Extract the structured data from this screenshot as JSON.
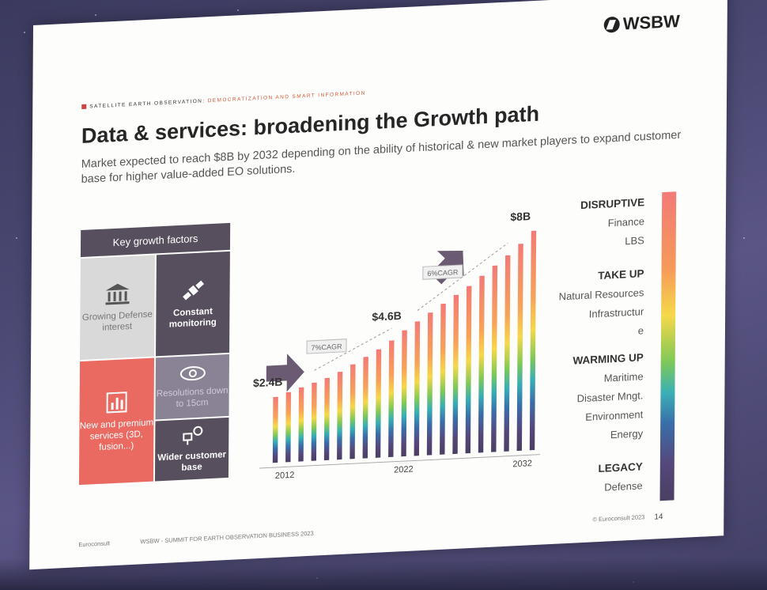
{
  "logo": "WSBW",
  "breadcrumb": {
    "part1": "SATELLITE EARTH OBSERVATION:",
    "part2": "DEMOCRATIZATION AND SMART INFORMATION"
  },
  "title": "Data & services: broadening the Growth path",
  "subtitle": "Market expected to reach $8B by 2032 depending on the ability of historical & new market players to expand customer base for higher value-added EO solutions.",
  "key_growth": {
    "header": "Key growth factors",
    "tiles": [
      {
        "label": "Growing Defense interest",
        "icon": "bank-icon"
      },
      {
        "label": "Constant monitoring",
        "icon": "satellite-icon"
      },
      {
        "label": "New and premium services (3D, fusion...)",
        "icon": "bar-chart-icon"
      },
      {
        "label": "Resolutions down to 15cm",
        "icon": "eye-icon"
      },
      {
        "label": "Wider customer base",
        "icon": "network-icon"
      }
    ]
  },
  "chart_data": {
    "type": "bar",
    "x_tick_labels": [
      "2012",
      "2022",
      "2032"
    ],
    "categories": [
      "2012",
      "2013",
      "2014",
      "2015",
      "2016",
      "2017",
      "2018",
      "2019",
      "2020",
      "2021",
      "2022",
      "2023",
      "2024",
      "2025",
      "2026",
      "2027",
      "2028",
      "2029",
      "2030",
      "2031",
      "2032"
    ],
    "values": [
      2.4,
      2.55,
      2.7,
      2.85,
      3.0,
      3.2,
      3.45,
      3.7,
      3.95,
      4.25,
      4.6,
      4.9,
      5.2,
      5.5,
      5.8,
      6.1,
      6.45,
      6.8,
      7.15,
      7.55,
      8.0
    ],
    "ylim": [
      0,
      8.6
    ],
    "annotations": [
      {
        "label": "$2.4B",
        "year": "2012"
      },
      {
        "label": "7%CAGR",
        "year": "2016"
      },
      {
        "label": "$4.6B",
        "year": "2022"
      },
      {
        "label": "6%CAGR",
        "year": "2025"
      },
      {
        "label": "$8B",
        "year": "2032"
      }
    ]
  },
  "segments": [
    {
      "header": "DISRUPTIVE",
      "items": [
        "Finance",
        "LBS"
      ]
    },
    {
      "header": "TAKE UP",
      "items": [
        "Natural Resources",
        "Infrastructur",
        "e"
      ]
    },
    {
      "header": "WARMING UP",
      "items": [
        "Maritime",
        "Disaster Mngt.",
        "Environment",
        "Energy"
      ]
    },
    {
      "header": "LEGACY",
      "items": [
        "Defense"
      ]
    }
  ],
  "footer": {
    "left": "Euroconsult",
    "center": "WSBW - SUMMIT FOR EARTH OBSERVATION BUSINESS 2023",
    "right": "© Euroconsult 2023",
    "page": "14"
  },
  "colors": {
    "dark_tile": "#574f5d",
    "red_tile": "#ea6a62",
    "grey_tile": "#d9d9d9",
    "arrow": "#6a5a72"
  }
}
